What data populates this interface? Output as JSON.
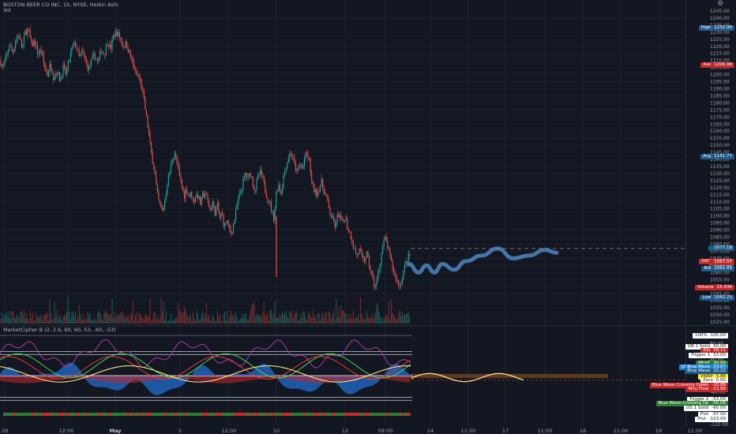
{
  "header": {
    "symbol_line": "BOSTON BEER CO INC, 15, NYSE, Heikin Ashi",
    "volume_label": "Vol",
    "indicator_line": "MarketCipher B (2, 2.6, 60, 60, 53, -60, -53)"
  },
  "price_axis": {
    "ticks": [
      "1240.00",
      "1235.00",
      "1230.00",
      "1225.00",
      "1220.00",
      "1215.00",
      "1210.00",
      "1205.00",
      "1200.00",
      "1195.00",
      "1190.00",
      "1185.00",
      "1180.00",
      "1175.00",
      "1170.00",
      "1165.00",
      "1160.00",
      "1155.00",
      "1150.00",
      "1145.00",
      "1140.00",
      "1135.00",
      "1130.00",
      "1125.00",
      "1120.00",
      "1115.00",
      "1110.00",
      "1105.00",
      "1100.00",
      "1095.00",
      "1090.00",
      "1085.00",
      "1080.00",
      "1075.00",
      "1070.00",
      "1065.00",
      "1060.00",
      "1055.00",
      "1050.00",
      "1045.00",
      "1040.00",
      "1035.00",
      "1030.00",
      "1025.00"
    ],
    "top_value": "1245.00",
    "labels": [
      {
        "name": "High",
        "value": "1232.98",
        "color": "#1e5a8a"
      },
      {
        "name": "Ask",
        "value": "1206.98",
        "color": "#c62828"
      },
      {
        "name": "Avg",
        "value": "1141.77",
        "color": "#1e5a8a"
      },
      {
        "name": "",
        "value": "1077.18",
        "color": "#1e5a8a"
      },
      {
        "name": "SAM",
        "value": "1067.53",
        "color": "#c62828"
      },
      {
        "name": "",
        "value": "1067.07",
        "color": "#c62828"
      },
      {
        "name": "",
        "value": "1063.01",
        "color": "#1e5a8a"
      },
      {
        "name": "Bid",
        "value": "1062.89",
        "color": "#1e5a8a"
      },
      {
        "name": "Volume",
        "value": "15.43K",
        "color": "#c62828"
      },
      {
        "name": "Low",
        "value": "1042.23",
        "color": "#1e5a8a"
      }
    ]
  },
  "indicator_axis": {
    "ticks": [
      "100.00",
      "80.00",
      "60.00",
      "40.00",
      "20.00",
      "0.00",
      "-20.00",
      "-40.00",
      "-60.00",
      "-80.00",
      "-100.00",
      "-120.00"
    ],
    "labels": [
      {
        "name": "100%",
        "value": "100.00",
        "bg": "#ffffff",
        "fg": "#131722"
      },
      {
        "name": "OB 1 Solid",
        "value": "60.00",
        "bg": "#ffffff",
        "fg": "#131722"
      },
      {
        "name": "RSI",
        "value": "58.11",
        "bg": "#c62828",
        "fg": "#ffffff"
      },
      {
        "name": "Trigger 1",
        "value": "53.00",
        "bg": "#ffffff",
        "fg": "#131722"
      },
      {
        "name": "Mf-VF",
        "value": "30.00",
        "bg": "#2e7d32",
        "fg": "#ffffff"
      },
      {
        "name": "LT Blue Wave",
        "value": "23.07",
        "bg": "#1e88e5",
        "fg": "#ffffff"
      },
      {
        "name": "Blue Wave",
        "value": "15.22",
        "bg": "#1e5a8a",
        "fg": "#ffffff"
      },
      {
        "name": "VWAP",
        "value": "5.86",
        "bg": "#ffeb3b",
        "fg": "#131722"
      },
      {
        "name": "Zero",
        "value": "0.00",
        "bg": "#ffffff",
        "fg": "#131722"
      },
      {
        "name": "Blue Wave Crossing Down",
        "value": "-10.88",
        "bg": "#c62828",
        "fg": "#ffffff"
      },
      {
        "name": "Mny Flow",
        "value": "-13.88",
        "bg": "#c62828",
        "fg": "#ffffff"
      },
      {
        "name": "Trigger 2",
        "value": "-53.00",
        "bg": "#ffffff",
        "fg": "#131722"
      },
      {
        "name": "Blue Wave Crossing Up",
        "value": "-56.08",
        "bg": "#2e7d32",
        "fg": "#ffffff"
      },
      {
        "name": "OS 1 Solid",
        "value": "-60.00",
        "bg": "#ffffff",
        "fg": "#131722"
      },
      {
        "name": "Plot",
        "value": "-97.00",
        "bg": "#ffffff",
        "fg": "#131722"
      },
      {
        "name": "Plot",
        "value": "-103.00",
        "bg": "#ffffff",
        "fg": "#131722"
      }
    ]
  },
  "time_axis": [
    {
      "text": "28",
      "bold": false
    },
    {
      "text": "12:00",
      "bold": false
    },
    {
      "text": "May",
      "bold": true
    },
    {
      "text": "5",
      "bold": false
    },
    {
      "text": "12:00",
      "bold": false
    },
    {
      "text": "10",
      "bold": false
    },
    {
      "text": "12",
      "bold": false
    },
    {
      "text": "09:00",
      "bold": false
    },
    {
      "text": "14",
      "bold": false
    },
    {
      "text": "11:00",
      "bold": false
    },
    {
      "text": "17",
      "bold": false
    },
    {
      "text": "11:00",
      "bold": false
    },
    {
      "text": "18",
      "bold": false
    },
    {
      "text": "11:00",
      "bold": false
    },
    {
      "text": "19",
      "bold": false
    },
    {
      "text": "11:00",
      "bold": false
    }
  ],
  "chart_data": {
    "type": "candlestick",
    "title": "BOSTON BEER CO INC, 15, NYSE, Heikin Ashi",
    "ylim": [
      1025,
      1245
    ],
    "price_path": [
      [
        0,
        1210
      ],
      [
        4,
        1205
      ],
      [
        8,
        1212
      ],
      [
        12,
        1222
      ],
      [
        16,
        1215
      ],
      [
        20,
        1225
      ],
      [
        24,
        1228
      ],
      [
        28,
        1218
      ],
      [
        32,
        1230
      ],
      [
        36,
        1232
      ],
      [
        40,
        1220
      ],
      [
        44,
        1224
      ],
      [
        48,
        1214
      ],
      [
        52,
        1218
      ],
      [
        56,
        1206
      ],
      [
        60,
        1200
      ],
      [
        64,
        1208
      ],
      [
        68,
        1198
      ],
      [
        72,
        1203
      ],
      [
        76,
        1196
      ],
      [
        80,
        1205
      ],
      [
        84,
        1200
      ],
      [
        88,
        1212
      ],
      [
        92,
        1220
      ],
      [
        96,
        1222
      ],
      [
        100,
        1212
      ],
      [
        104,
        1216
      ],
      [
        108,
        1210
      ],
      [
        112,
        1204
      ],
      [
        116,
        1210
      ],
      [
        120,
        1214
      ],
      [
        124,
        1208
      ],
      [
        128,
        1218
      ],
      [
        132,
        1214
      ],
      [
        136,
        1224
      ],
      [
        140,
        1218
      ],
      [
        144,
        1228
      ],
      [
        148,
        1230
      ],
      [
        152,
        1226
      ],
      [
        156,
        1220
      ],
      [
        160,
        1222
      ],
      [
        164,
        1215
      ],
      [
        168,
        1208
      ],
      [
        172,
        1200
      ],
      [
        176,
        1198
      ],
      [
        180,
        1190
      ],
      [
        184,
        1175
      ],
      [
        188,
        1160
      ],
      [
        190,
        1150
      ],
      [
        193,
        1140
      ],
      [
        196,
        1130
      ],
      [
        198,
        1120
      ],
      [
        200,
        1112
      ],
      [
        203,
        1106
      ],
      [
        206,
        1103
      ],
      [
        209,
        1112
      ],
      [
        212,
        1124
      ],
      [
        215,
        1132
      ],
      [
        218,
        1140
      ],
      [
        221,
        1145
      ],
      [
        224,
        1138
      ],
      [
        227,
        1128
      ],
      [
        230,
        1122
      ],
      [
        233,
        1114
      ],
      [
        236,
        1120
      ],
      [
        239,
        1114
      ],
      [
        242,
        1116
      ],
      [
        245,
        1110
      ],
      [
        248,
        1115
      ],
      [
        251,
        1114
      ],
      [
        254,
        1108
      ],
      [
        257,
        1115
      ],
      [
        260,
        1116
      ],
      [
        263,
        1110
      ],
      [
        266,
        1104
      ],
      [
        269,
        1110
      ],
      [
        272,
        1102
      ],
      [
        275,
        1108
      ],
      [
        278,
        1098
      ],
      [
        281,
        1102
      ],
      [
        284,
        1092
      ],
      [
        287,
        1098
      ],
      [
        290,
        1090
      ],
      [
        293,
        1088
      ],
      [
        296,
        1095
      ],
      [
        299,
        1104
      ],
      [
        302,
        1112
      ],
      [
        305,
        1118
      ],
      [
        308,
        1124
      ],
      [
        311,
        1130
      ],
      [
        314,
        1126
      ],
      [
        317,
        1131
      ],
      [
        320,
        1124
      ],
      [
        323,
        1118
      ],
      [
        326,
        1126
      ],
      [
        329,
        1131
      ],
      [
        332,
        1128
      ],
      [
        335,
        1120
      ],
      [
        338,
        1114
      ],
      [
        341,
        1110
      ],
      [
        344,
        1104
      ],
      [
        347,
        1098
      ],
      [
        350,
        1118
      ],
      [
        353,
        1122
      ],
      [
        356,
        1116
      ],
      [
        359,
        1128
      ],
      [
        362,
        1135
      ],
      [
        365,
        1141
      ],
      [
        368,
        1145
      ],
      [
        371,
        1140
      ],
      [
        374,
        1134
      ],
      [
        377,
        1130
      ],
      [
        380,
        1138
      ],
      [
        383,
        1132
      ],
      [
        386,
        1142
      ],
      [
        389,
        1144
      ],
      [
        392,
        1138
      ],
      [
        395,
        1122
      ],
      [
        398,
        1118
      ],
      [
        401,
        1116
      ],
      [
        404,
        1120
      ],
      [
        407,
        1124
      ],
      [
        410,
        1118
      ],
      [
        413,
        1114
      ],
      [
        416,
        1106
      ],
      [
        419,
        1100
      ],
      [
        422,
        1096
      ],
      [
        425,
        1092
      ],
      [
        428,
        1102
      ],
      [
        431,
        1098
      ],
      [
        434,
        1094
      ],
      [
        437,
        1100
      ],
      [
        440,
        1092
      ],
      [
        443,
        1088
      ],
      [
        446,
        1082
      ],
      [
        449,
        1076
      ],
      [
        452,
        1072
      ],
      [
        455,
        1076
      ],
      [
        458,
        1070
      ],
      [
        461,
        1068
      ],
      [
        464,
        1074
      ],
      [
        467,
        1066
      ],
      [
        470,
        1060
      ],
      [
        473,
        1052
      ],
      [
        476,
        1050
      ],
      [
        479,
        1060
      ],
      [
        482,
        1070
      ],
      [
        485,
        1080
      ],
      [
        488,
        1084
      ],
      [
        491,
        1078
      ],
      [
        494,
        1070
      ],
      [
        497,
        1064
      ],
      [
        500,
        1058
      ],
      [
        503,
        1054
      ],
      [
        506,
        1050
      ],
      [
        509,
        1056
      ],
      [
        512,
        1064
      ],
      [
        515,
        1068
      ],
      [
        518,
        1072
      ]
    ],
    "forecast_path": [
      [
        518,
        1066
      ],
      [
        530,
        1060
      ],
      [
        540,
        1065
      ],
      [
        550,
        1060
      ],
      [
        560,
        1066
      ],
      [
        575,
        1062
      ],
      [
        590,
        1068
      ],
      [
        610,
        1072
      ],
      [
        630,
        1077
      ],
      [
        650,
        1070
      ],
      [
        670,
        1072
      ],
      [
        690,
        1076
      ],
      [
        705,
        1074
      ]
    ],
    "volume_label": "Vol",
    "indicator": {
      "name": "MarketCipher B (2, 2.6, 60, 60, 53, -60, -53)",
      "ylim": [
        -120,
        110
      ],
      "levels": [
        100,
        60,
        53,
        0,
        -53,
        -60
      ]
    }
  }
}
